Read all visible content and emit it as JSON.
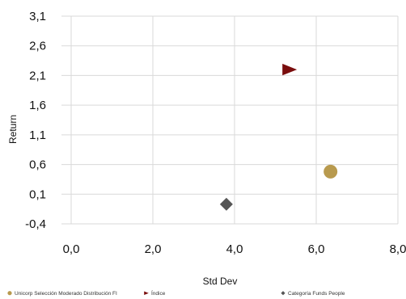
{
  "chart_data": {
    "type": "scatter",
    "title": "",
    "xlabel": "Std Dev",
    "ylabel": "Return",
    "xlim": [
      0.0,
      8.0
    ],
    "ylim": [
      -0.4,
      3.1
    ],
    "x_ticks": [
      "0,0",
      "2,0",
      "4,0",
      "6,0",
      "8,0"
    ],
    "y_ticks": [
      "3,1",
      "2,6",
      "2,1",
      "1,6",
      "1,1",
      "0,6",
      "0,1",
      "-0,4"
    ],
    "grid": true,
    "legend_position": "bottom",
    "series": [
      {
        "name": "Unicorp Selección Moderado Distribución FI",
        "marker": "circle",
        "color": "#b89a4e",
        "x": 6.35,
        "y": 0.48
      },
      {
        "name": "Índice",
        "marker": "triangle-right",
        "color": "#7a0d0d",
        "x": 5.35,
        "y": 2.2
      },
      {
        "name": "Categoría Funds People",
        "marker": "diamond",
        "color": "#555555",
        "x": 3.8,
        "y": -0.07
      }
    ]
  }
}
